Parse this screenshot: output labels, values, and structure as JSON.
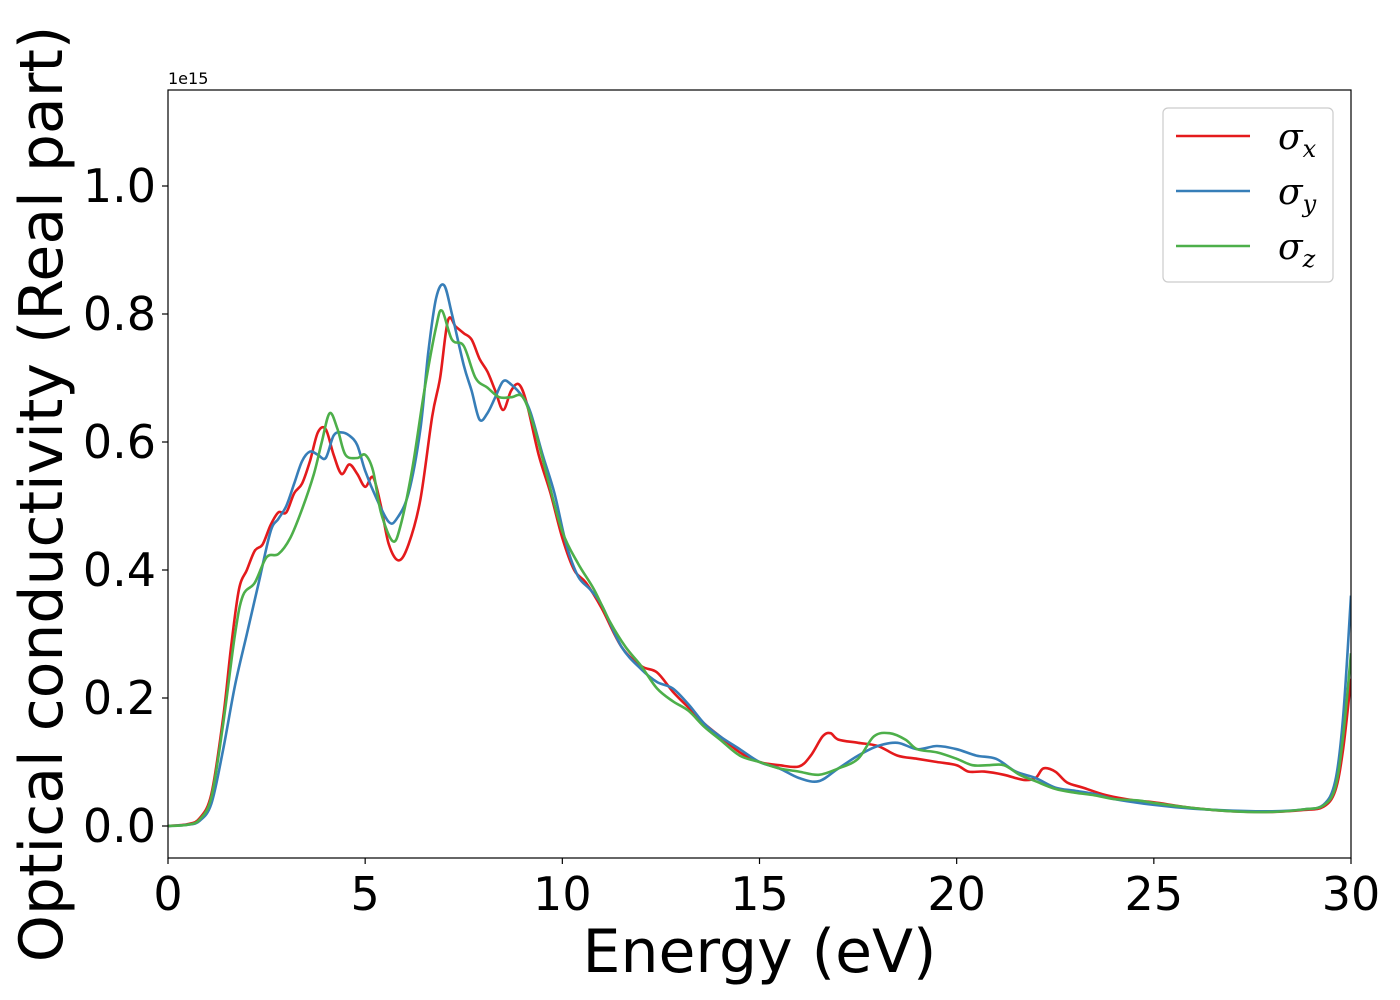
{
  "chart_data": {
    "type": "line",
    "xlabel": "Energy (eV)",
    "ylabel": "Optical conductivity (Real part)",
    "y_offset_label": "1e15",
    "y_scale": 1000000000000000.0,
    "xlim": [
      0,
      30
    ],
    "ylim": [
      -0.05,
      1.15
    ],
    "x_ticks": [
      0,
      5,
      10,
      15,
      20,
      25,
      30
    ],
    "x_tick_labels": [
      "0",
      "5",
      "10",
      "15",
      "20",
      "25",
      "30"
    ],
    "y_ticks": [
      0.0,
      0.2,
      0.4,
      0.6,
      0.8,
      1.0
    ],
    "y_tick_labels": [
      "0.0",
      "0.2",
      "0.4",
      "0.6",
      "0.8",
      "1.0"
    ],
    "grid": false,
    "legend_position": "top-right",
    "series": [
      {
        "name": "σx",
        "name_base": "σ",
        "name_sub": "x",
        "color": "#e41a1c",
        "points": [
          [
            0,
            0
          ],
          [
            0.5,
            0.003
          ],
          [
            0.8,
            0.012
          ],
          [
            1.1,
            0.05
          ],
          [
            1.4,
            0.17
          ],
          [
            1.6,
            0.28
          ],
          [
            1.8,
            0.37
          ],
          [
            2.0,
            0.4
          ],
          [
            2.2,
            0.43
          ],
          [
            2.4,
            0.44
          ],
          [
            2.6,
            0.47
          ],
          [
            2.8,
            0.49
          ],
          [
            3.0,
            0.49
          ],
          [
            3.2,
            0.52
          ],
          [
            3.4,
            0.535
          ],
          [
            3.6,
            0.57
          ],
          [
            3.8,
            0.615
          ],
          [
            4.0,
            0.62
          ],
          [
            4.2,
            0.58
          ],
          [
            4.4,
            0.55
          ],
          [
            4.6,
            0.565
          ],
          [
            4.8,
            0.55
          ],
          [
            5.0,
            0.53
          ],
          [
            5.2,
            0.545
          ],
          [
            5.4,
            0.5
          ],
          [
            5.6,
            0.44
          ],
          [
            5.85,
            0.415
          ],
          [
            6.1,
            0.44
          ],
          [
            6.4,
            0.51
          ],
          [
            6.7,
            0.64
          ],
          [
            6.9,
            0.7
          ],
          [
            7.1,
            0.79
          ],
          [
            7.3,
            0.78
          ],
          [
            7.5,
            0.77
          ],
          [
            7.7,
            0.76
          ],
          [
            7.9,
            0.73
          ],
          [
            8.1,
            0.71
          ],
          [
            8.3,
            0.68
          ],
          [
            8.5,
            0.65
          ],
          [
            8.7,
            0.68
          ],
          [
            8.9,
            0.69
          ],
          [
            9.1,
            0.66
          ],
          [
            9.4,
            0.58
          ],
          [
            9.7,
            0.52
          ],
          [
            10.0,
            0.45
          ],
          [
            10.3,
            0.4
          ],
          [
            10.6,
            0.38
          ],
          [
            11.0,
            0.34
          ],
          [
            11.5,
            0.28
          ],
          [
            12.0,
            0.25
          ],
          [
            12.4,
            0.24
          ],
          [
            12.8,
            0.21
          ],
          [
            13.2,
            0.185
          ],
          [
            13.6,
            0.16
          ],
          [
            14.0,
            0.14
          ],
          [
            14.5,
            0.115
          ],
          [
            15.0,
            0.1
          ],
          [
            15.5,
            0.095
          ],
          [
            16.0,
            0.093
          ],
          [
            16.3,
            0.11
          ],
          [
            16.6,
            0.14
          ],
          [
            16.8,
            0.145
          ],
          [
            17.0,
            0.135
          ],
          [
            17.5,
            0.13
          ],
          [
            18.0,
            0.125
          ],
          [
            18.5,
            0.11
          ],
          [
            19.0,
            0.105
          ],
          [
            19.5,
            0.1
          ],
          [
            20.0,
            0.095
          ],
          [
            20.3,
            0.085
          ],
          [
            20.7,
            0.085
          ],
          [
            21.2,
            0.08
          ],
          [
            21.7,
            0.072
          ],
          [
            22.0,
            0.075
          ],
          [
            22.2,
            0.09
          ],
          [
            22.5,
            0.085
          ],
          [
            22.8,
            0.068
          ],
          [
            23.2,
            0.06
          ],
          [
            23.8,
            0.048
          ],
          [
            24.5,
            0.04
          ],
          [
            25.0,
            0.037
          ],
          [
            26.0,
            0.028
          ],
          [
            27.0,
            0.023
          ],
          [
            28.0,
            0.022
          ],
          [
            28.8,
            0.025
          ],
          [
            29.3,
            0.03
          ],
          [
            29.6,
            0.055
          ],
          [
            29.8,
            0.12
          ],
          [
            30.0,
            0.23
          ]
        ]
      },
      {
        "name": "σy",
        "name_base": "σ",
        "name_sub": "y",
        "color": "#377eb8",
        "points": [
          [
            0,
            0
          ],
          [
            0.5,
            0.002
          ],
          [
            0.8,
            0.008
          ],
          [
            1.1,
            0.035
          ],
          [
            1.4,
            0.12
          ],
          [
            1.7,
            0.22
          ],
          [
            2.0,
            0.3
          ],
          [
            2.3,
            0.38
          ],
          [
            2.6,
            0.46
          ],
          [
            2.8,
            0.48
          ],
          [
            3.0,
            0.5
          ],
          [
            3.2,
            0.535
          ],
          [
            3.4,
            0.57
          ],
          [
            3.6,
            0.585
          ],
          [
            3.8,
            0.58
          ],
          [
            4.0,
            0.575
          ],
          [
            4.2,
            0.61
          ],
          [
            4.4,
            0.615
          ],
          [
            4.6,
            0.61
          ],
          [
            4.8,
            0.595
          ],
          [
            5.0,
            0.555
          ],
          [
            5.3,
            0.51
          ],
          [
            5.6,
            0.475
          ],
          [
            5.8,
            0.48
          ],
          [
            6.1,
            0.52
          ],
          [
            6.4,
            0.62
          ],
          [
            6.6,
            0.74
          ],
          [
            6.8,
            0.825
          ],
          [
            7.0,
            0.845
          ],
          [
            7.2,
            0.8
          ],
          [
            7.5,
            0.72
          ],
          [
            7.7,
            0.68
          ],
          [
            7.9,
            0.635
          ],
          [
            8.1,
            0.645
          ],
          [
            8.3,
            0.67
          ],
          [
            8.5,
            0.695
          ],
          [
            8.7,
            0.69
          ],
          [
            9.0,
            0.67
          ],
          [
            9.2,
            0.645
          ],
          [
            9.5,
            0.58
          ],
          [
            9.8,
            0.52
          ],
          [
            10.1,
            0.44
          ],
          [
            10.4,
            0.39
          ],
          [
            10.7,
            0.37
          ],
          [
            11.0,
            0.345
          ],
          [
            11.5,
            0.28
          ],
          [
            12.0,
            0.245
          ],
          [
            12.4,
            0.225
          ],
          [
            12.8,
            0.215
          ],
          [
            13.2,
            0.19
          ],
          [
            13.6,
            0.16
          ],
          [
            14.0,
            0.14
          ],
          [
            14.5,
            0.12
          ],
          [
            15.0,
            0.1
          ],
          [
            15.5,
            0.09
          ],
          [
            16.0,
            0.075
          ],
          [
            16.5,
            0.07
          ],
          [
            17.0,
            0.09
          ],
          [
            17.5,
            0.11
          ],
          [
            18.0,
            0.125
          ],
          [
            18.5,
            0.13
          ],
          [
            19.0,
            0.12
          ],
          [
            19.5,
            0.125
          ],
          [
            20.0,
            0.12
          ],
          [
            20.5,
            0.11
          ],
          [
            21.0,
            0.105
          ],
          [
            21.5,
            0.085
          ],
          [
            22.0,
            0.075
          ],
          [
            22.5,
            0.06
          ],
          [
            23.0,
            0.055
          ],
          [
            23.5,
            0.05
          ],
          [
            24.0,
            0.042
          ],
          [
            25.0,
            0.033
          ],
          [
            26.0,
            0.027
          ],
          [
            27.0,
            0.024
          ],
          [
            28.0,
            0.023
          ],
          [
            28.8,
            0.026
          ],
          [
            29.3,
            0.033
          ],
          [
            29.6,
            0.07
          ],
          [
            29.8,
            0.17
          ],
          [
            30.0,
            0.36
          ]
        ]
      },
      {
        "name": "σz",
        "name_base": "σ",
        "name_sub": "z",
        "color": "#4daf4a",
        "points": [
          [
            0,
            0
          ],
          [
            0.5,
            0.002
          ],
          [
            0.8,
            0.01
          ],
          [
            1.1,
            0.045
          ],
          [
            1.4,
            0.16
          ],
          [
            1.7,
            0.3
          ],
          [
            1.9,
            0.36
          ],
          [
            2.2,
            0.38
          ],
          [
            2.5,
            0.42
          ],
          [
            2.8,
            0.425
          ],
          [
            3.1,
            0.45
          ],
          [
            3.4,
            0.495
          ],
          [
            3.7,
            0.55
          ],
          [
            3.9,
            0.6
          ],
          [
            4.1,
            0.645
          ],
          [
            4.3,
            0.62
          ],
          [
            4.5,
            0.58
          ],
          [
            4.8,
            0.575
          ],
          [
            5.0,
            0.58
          ],
          [
            5.2,
            0.555
          ],
          [
            5.4,
            0.49
          ],
          [
            5.7,
            0.445
          ],
          [
            5.9,
            0.47
          ],
          [
            6.2,
            0.56
          ],
          [
            6.5,
            0.68
          ],
          [
            6.8,
            0.78
          ],
          [
            6.95,
            0.805
          ],
          [
            7.2,
            0.76
          ],
          [
            7.5,
            0.75
          ],
          [
            7.8,
            0.7
          ],
          [
            8.1,
            0.685
          ],
          [
            8.4,
            0.67
          ],
          [
            8.7,
            0.67
          ],
          [
            9.0,
            0.67
          ],
          [
            9.3,
            0.62
          ],
          [
            9.6,
            0.55
          ],
          [
            10.0,
            0.46
          ],
          [
            10.4,
            0.41
          ],
          [
            10.8,
            0.37
          ],
          [
            11.2,
            0.32
          ],
          [
            11.6,
            0.28
          ],
          [
            12.0,
            0.25
          ],
          [
            12.4,
            0.215
          ],
          [
            12.8,
            0.195
          ],
          [
            13.2,
            0.18
          ],
          [
            13.6,
            0.155
          ],
          [
            14.0,
            0.135
          ],
          [
            14.5,
            0.11
          ],
          [
            15.0,
            0.1
          ],
          [
            15.5,
            0.09
          ],
          [
            16.0,
            0.085
          ],
          [
            16.5,
            0.08
          ],
          [
            17.0,
            0.09
          ],
          [
            17.5,
            0.105
          ],
          [
            17.9,
            0.14
          ],
          [
            18.3,
            0.145
          ],
          [
            18.7,
            0.135
          ],
          [
            19.0,
            0.12
          ],
          [
            19.5,
            0.115
          ],
          [
            20.0,
            0.105
          ],
          [
            20.4,
            0.095
          ],
          [
            20.8,
            0.095
          ],
          [
            21.2,
            0.095
          ],
          [
            21.6,
            0.08
          ],
          [
            22.0,
            0.07
          ],
          [
            22.5,
            0.058
          ],
          [
            23.0,
            0.052
          ],
          [
            23.5,
            0.048
          ],
          [
            24.0,
            0.042
          ],
          [
            24.6,
            0.04
          ],
          [
            25.0,
            0.036
          ],
          [
            26.0,
            0.028
          ],
          [
            27.0,
            0.023
          ],
          [
            28.0,
            0.022
          ],
          [
            28.8,
            0.026
          ],
          [
            29.3,
            0.032
          ],
          [
            29.6,
            0.06
          ],
          [
            29.8,
            0.14
          ],
          [
            30.0,
            0.27
          ]
        ]
      }
    ]
  }
}
